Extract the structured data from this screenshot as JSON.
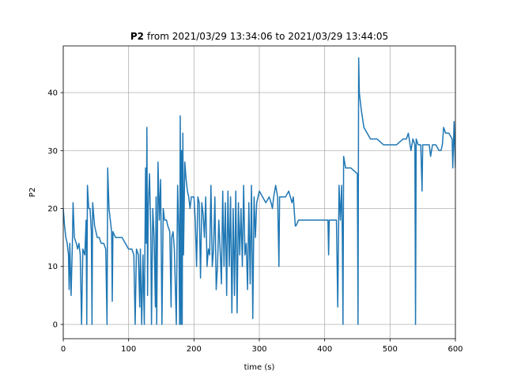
{
  "chart_data": {
    "type": "line",
    "title": [
      "P2",
      "from 2021/03/29 13:34:06 to 2021/03/29 13:44:05"
    ],
    "xlabel": "time (s)",
    "ylabel": "P2",
    "color": "#1f77b4",
    "grid": true,
    "xlim": [
      0,
      600
    ],
    "xticks": [
      0,
      100,
      200,
      300,
      400,
      500,
      600
    ],
    "ylim": [
      -2.46,
      48.06
    ],
    "yticks": [
      0,
      10,
      20,
      30,
      40
    ],
    "x": [
      0,
      2,
      4,
      6,
      8,
      9,
      10,
      12,
      14,
      15,
      17,
      20,
      22,
      24,
      26,
      28,
      30,
      33,
      35,
      36,
      37,
      39,
      41,
      43,
      44,
      45,
      48,
      52,
      55,
      58,
      62,
      65,
      67,
      68,
      70,
      72,
      74,
      75,
      76,
      80,
      85,
      90,
      95,
      100,
      105,
      108,
      110,
      112,
      115,
      117,
      118,
      120,
      122,
      124,
      125,
      126,
      127,
      128,
      129,
      130,
      132,
      134,
      135,
      137,
      139,
      141,
      142,
      143,
      145,
      147,
      149,
      151,
      153,
      155,
      158,
      160,
      163,
      165,
      166,
      168,
      170,
      173,
      175,
      177,
      178,
      179,
      180,
      181,
      182,
      183,
      184,
      186,
      188,
      190,
      192,
      194,
      196,
      198,
      200,
      202,
      204,
      206,
      208,
      210,
      212,
      214,
      216,
      218,
      220,
      222,
      224,
      226,
      228,
      230,
      232,
      234,
      236,
      238,
      240,
      242,
      244,
      246,
      248,
      250,
      252,
      254,
      256,
      258,
      260,
      262,
      264,
      266,
      268,
      270,
      272,
      274,
      276,
      278,
      280,
      282,
      284,
      286,
      288,
      290,
      292,
      294,
      296,
      298,
      300,
      305,
      310,
      315,
      318,
      320,
      322,
      325,
      328,
      330,
      331,
      335,
      340,
      345,
      350,
      352,
      355,
      356,
      360,
      370,
      380,
      390,
      400,
      405,
      406,
      407,
      410,
      415,
      418,
      420,
      422,
      424,
      426,
      427,
      428,
      429,
      432,
      440,
      450,
      451,
      452,
      453,
      456,
      460,
      465,
      470,
      480,
      490,
      500,
      510,
      520,
      525,
      528,
      532,
      535,
      538,
      539,
      540,
      543,
      545,
      547,
      549,
      550,
      555,
      560,
      562,
      565,
      570,
      575,
      578,
      580,
      582,
      585,
      590,
      595,
      596,
      598,
      600
    ],
    "values": [
      20,
      17,
      15,
      14,
      12,
      6,
      14,
      5,
      14,
      21,
      15,
      14,
      13,
      14,
      12,
      0,
      13,
      12,
      18,
      0,
      24,
      20,
      20,
      16,
      0,
      21,
      17,
      15,
      15,
      14,
      14,
      13,
      0,
      27,
      20,
      18,
      16,
      4,
      16,
      15,
      15,
      15,
      14,
      13,
      13,
      12,
      0,
      13,
      12,
      3,
      13,
      0,
      12,
      0,
      14,
      27,
      14,
      34,
      5,
      20,
      26,
      15,
      0,
      20,
      15,
      3,
      22,
      0,
      28,
      18,
      25,
      0,
      20,
      18,
      18,
      17,
      16,
      3,
      15,
      16,
      13,
      0,
      24,
      15,
      0,
      36,
      0,
      30,
      0,
      33,
      12,
      28,
      25,
      23,
      22,
      20,
      22,
      22,
      22,
      18,
      10,
      22,
      21,
      8,
      21,
      19,
      15,
      22,
      10,
      13,
      12,
      24,
      10,
      13,
      22,
      6,
      10,
      18,
      13,
      7,
      23,
      10,
      21,
      5,
      23,
      10,
      22,
      2,
      20,
      5,
      23,
      2,
      21,
      12,
      20,
      10,
      24,
      12,
      14,
      6,
      21,
      7,
      24,
      1,
      22,
      15,
      21,
      22,
      23,
      22,
      21,
      22,
      21,
      20,
      22,
      24,
      22,
      10,
      22,
      22,
      22,
      23,
      21,
      22,
      17,
      17,
      18,
      18,
      18,
      18,
      18,
      18,
      12,
      18,
      18,
      18,
      18,
      3,
      24,
      18,
      24,
      15,
      0,
      29,
      27,
      27,
      26,
      0,
      46,
      40,
      37,
      34,
      33,
      32,
      32,
      31,
      31,
      31,
      32,
      32,
      33,
      30,
      32,
      31,
      0,
      32,
      31,
      31,
      31,
      23,
      31,
      31,
      31,
      29,
      31,
      31,
      30,
      30,
      31,
      34,
      33,
      33,
      32,
      27,
      35,
      27
    ]
  }
}
